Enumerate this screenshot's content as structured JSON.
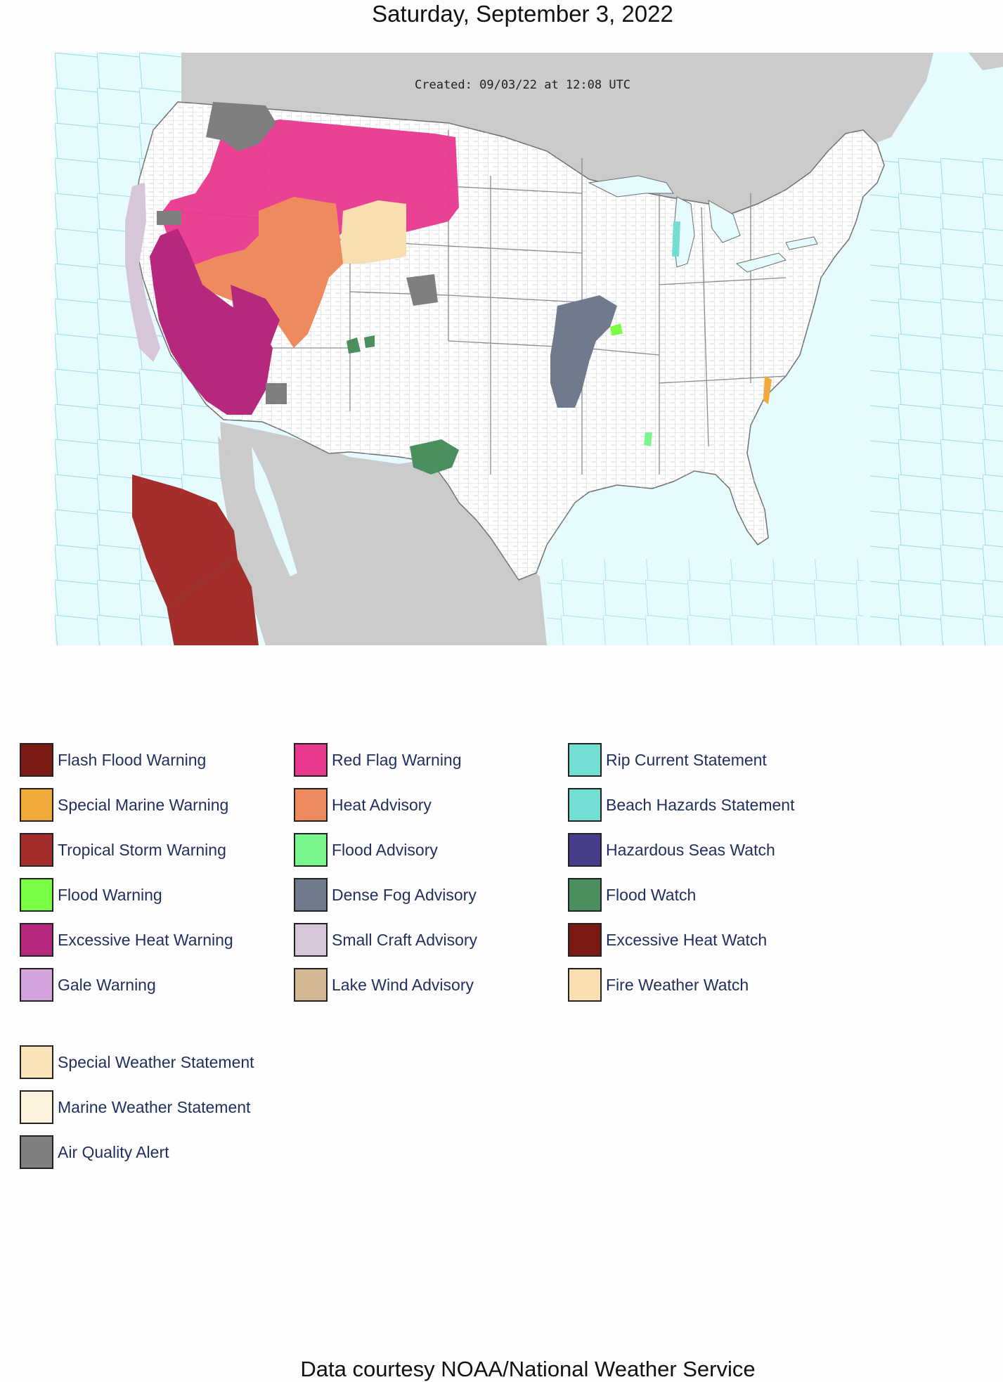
{
  "title": "Saturday, September 3, 2022",
  "map": {
    "created_stamp": "Created: 09/03/22 at 12:08 UTC",
    "colors": {
      "ocean": "#e6fbfd",
      "land_outside": "#cdcdcd",
      "land_us": "#ffffff",
      "boundary": "#7fcfd4",
      "county": "#bdbdbd"
    }
  },
  "legend": [
    {
      "label": "Flash Flood Warning",
      "color": "#7b1a14"
    },
    {
      "label": "Special Marine Warning",
      "color": "#f2a93b"
    },
    {
      "label": "Tropical Storm Warning",
      "color": "#a32e2b"
    },
    {
      "label": "Flood Warning",
      "color": "#7aff45"
    },
    {
      "label": "Excessive Heat Warning",
      "color": "#b5287e"
    },
    {
      "label": "Gale Warning",
      "color": "#d4a3dd"
    },
    {
      "label": "Red Flag Warning",
      "color": "#e8388e"
    },
    {
      "label": "Heat Advisory",
      "color": "#ee8a5e"
    },
    {
      "label": "Flood Advisory",
      "color": "#7af68e"
    },
    {
      "label": "Dense Fog Advisory",
      "color": "#6f7a8c"
    },
    {
      "label": "Small Craft Advisory",
      "color": "#d7c5da"
    },
    {
      "label": "Lake Wind Advisory",
      "color": "#d3b893"
    },
    {
      "label": "Rip Current Statement",
      "color": "#73dfd3"
    },
    {
      "label": "Beach Hazards Statement",
      "color": "#73dfd3"
    },
    {
      "label": "Hazardous Seas Watch",
      "color": "#453c8a"
    },
    {
      "label": "Flood Watch",
      "color": "#4b8f60"
    },
    {
      "label": "Excessive Heat Watch",
      "color": "#7b1a14"
    },
    {
      "label": "Fire Weather Watch",
      "color": "#f8deb0"
    },
    {
      "label": "Special Weather Statement",
      "color": "#f8e4b8"
    },
    {
      "label": "Marine Weather Statement",
      "color": "#fcf2de"
    },
    {
      "label": "Air Quality Alert",
      "color": "#7f7f7f"
    }
  ],
  "credit": "Data courtesy NOAA/National Weather Service"
}
